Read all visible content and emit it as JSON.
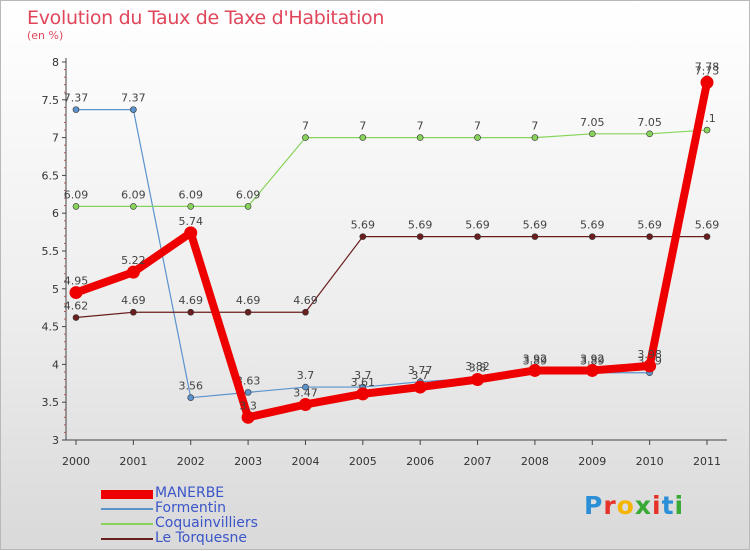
{
  "title": "Evolution du Taux de Taxe d'Habitation",
  "subtitle": "(en %)",
  "logo": {
    "text": "Proxiti",
    "letters": [
      "P",
      "r",
      "o",
      "x",
      "i",
      "t",
      "i"
    ],
    "colors": [
      "#2a8fd6",
      "#e6332a",
      "#f5b400",
      "#3aa935",
      "#e6332a",
      "#2a8fd6",
      "#3aa935"
    ]
  },
  "chart_data": {
    "type": "line",
    "title": "Evolution du Taux de Taxe d'Habitation",
    "ylabel": "(en %)",
    "xlabel": "",
    "x": [
      "2000",
      "2001",
      "2002",
      "2003",
      "2004",
      "2005",
      "2006",
      "2007",
      "2008",
      "2009",
      "2010",
      "2011"
    ],
    "ylim": [
      3,
      8
    ],
    "yticks": [
      "3",
      "3.5",
      "4",
      "4.5",
      "5",
      "5.5",
      "6",
      "6.5",
      "7",
      "7.5",
      "8"
    ],
    "grid": false,
    "legend_position": "bottom-left",
    "series": [
      {
        "name": "MANERBE",
        "color": "#ee0000",
        "emphasis": true,
        "values": [
          4.95,
          5.22,
          5.74,
          3.3,
          3.47,
          3.61,
          3.7,
          3.8,
          3.92,
          3.92,
          3.98,
          7.73
        ],
        "labels": [
          "4.95",
          "5.22",
          "5.74",
          "3.3",
          "3.47",
          "3.61",
          "3.7",
          "3.8",
          "3.92",
          "3.92",
          "3.98",
          "7.73"
        ]
      },
      {
        "name": "Formentin",
        "color": "#5b93cc",
        "values": [
          7.37,
          7.37,
          3.56,
          3.63,
          3.7,
          3.7,
          3.77,
          3.82,
          3.89,
          3.89,
          3.89,
          7.78
        ],
        "labels": [
          "7.37",
          "7.37",
          "3.56",
          "3.63",
          "3.7",
          "3.7",
          "3.77",
          "3.82",
          "3.89",
          "3.89",
          "3.89",
          "7.78"
        ]
      },
      {
        "name": "Coquainvilliers",
        "color": "#88d45a",
        "values": [
          6.09,
          6.09,
          6.09,
          6.09,
          7,
          7,
          7,
          7,
          7,
          7.05,
          7.05,
          7.1
        ],
        "labels": [
          "6.09",
          "6.09",
          "6.09",
          "6.09",
          "7",
          "7",
          "7",
          "7",
          "7",
          "7.05",
          "7.05",
          "7.1"
        ]
      },
      {
        "name": "Le Torquesne",
        "color": "#6b1e1e",
        "values": [
          4.62,
          4.69,
          4.69,
          4.69,
          4.69,
          5.69,
          5.69,
          5.69,
          5.69,
          5.69,
          5.69,
          5.69
        ],
        "labels": [
          "4.62",
          "4.69",
          "4.69",
          "4.69",
          "4.69",
          "5.69",
          "5.69",
          "5.69",
          "5.69",
          "5.69",
          "5.69",
          "5.69"
        ]
      }
    ]
  }
}
